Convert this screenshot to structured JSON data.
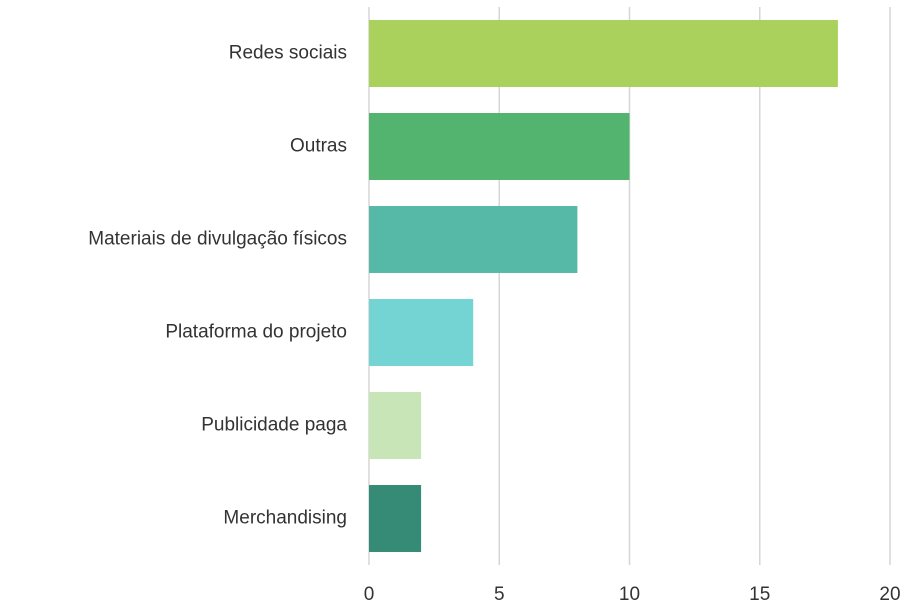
{
  "chart_data": {
    "type": "bar",
    "orientation": "horizontal",
    "categories": [
      "Redes sociais",
      "Outras",
      "Materiais de divulgação físicos",
      "Plataforma do projeto",
      "Publicidade paga",
      "Merchandising"
    ],
    "values": [
      18,
      10,
      8,
      4,
      2,
      2
    ],
    "colors": [
      "#a9d15c",
      "#52b46e",
      "#56b9a8",
      "#74d4d4",
      "#c7e5b7",
      "#358b75"
    ],
    "xlim": [
      0,
      20
    ],
    "xticks": [
      0,
      5,
      10,
      15,
      20
    ],
    "grid": true
  }
}
